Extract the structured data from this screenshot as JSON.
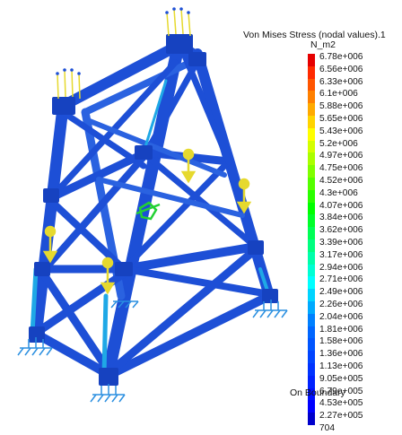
{
  "legend": {
    "title": "Von Mises Stress (nodal values).1",
    "unit": "N_m2",
    "labels": [
      "6.78e+006",
      "6.56e+006",
      "6.33e+006",
      "6.1e+006",
      "5.88e+006",
      "5.65e+006",
      "5.43e+006",
      "5.2e+006",
      "4.97e+006",
      "4.75e+006",
      "4.52e+006",
      "4.3e+006",
      "4.07e+006",
      "3.84e+006",
      "3.62e+006",
      "3.39e+006",
      "3.17e+006",
      "2.94e+006",
      "2.71e+006",
      "2.49e+006",
      "2.26e+006",
      "2.04e+006",
      "1.81e+006",
      "1.58e+006",
      "1.36e+006",
      "1.13e+006",
      "9.05e+005",
      "6.79e+005",
      "4.53e+005",
      "2.27e+005",
      "704"
    ],
    "colors": [
      "#e60000",
      "#ff2a00",
      "#ff5500",
      "#ff8000",
      "#ffaa00",
      "#ffd400",
      "#ffff00",
      "#d4ff00",
      "#aaff00",
      "#80ff00",
      "#55ff00",
      "#2aff00",
      "#00ff00",
      "#00ff2a",
      "#00ff55",
      "#00ff80",
      "#00ffaa",
      "#00ffd4",
      "#00ffff",
      "#00d4ff",
      "#00aaff",
      "#0080ff",
      "#0066ff",
      "#0055ff",
      "#0044ff",
      "#0033ff",
      "#0022ff",
      "#0011ff",
      "#0000ff",
      "#0000cc"
    ],
    "footer": "On Boundary"
  },
  "model": {
    "member_color": "#1d4fd6",
    "edge_color": "#0a2a9a",
    "highlight_color": "#1fa8e6",
    "load_color": "#e6d92e",
    "support_color": "#2a8fe0",
    "hotspot_color": "#22d133"
  }
}
